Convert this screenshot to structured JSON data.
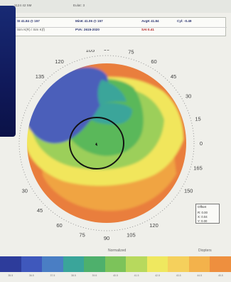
{
  "header": {
    "line1_left": "1124 42 5M",
    "line1_right": "Eulat: 3",
    "sim_k": "SI 41.84 @ 157",
    "sim_k_sub": "Sim K(R) / Sim K(f)",
    "min_k": "MinK 41.06 @ 157",
    "pva": "PVA: 2615-2020",
    "avg_k": "AvgK 41.84",
    "sai": "SAI 0.41",
    "cyl": "Cyl: -0.49"
  },
  "map": {
    "degree_labels": [
      {
        "text": "105",
        "angle": 100
      },
      {
        "text": "90",
        "angle": 90
      },
      {
        "text": "75",
        "angle": 75
      },
      {
        "text": "60",
        "angle": 60
      },
      {
        "text": "45",
        "angle": 45
      },
      {
        "text": "30",
        "angle": 30
      },
      {
        "text": "15",
        "angle": 15
      },
      {
        "text": "0",
        "angle": 0
      },
      {
        "text": "165",
        "angle": -15
      },
      {
        "text": "150",
        "angle": -30
      },
      {
        "text": "120",
        "angle": -60
      },
      {
        "text": "105",
        "angle": -75
      },
      {
        "text": "90",
        "angle": -90
      },
      {
        "text": "75",
        "angle": -105
      },
      {
        "text": "60",
        "angle": -120
      },
      {
        "text": "45",
        "angle": -135
      },
      {
        "text": "30",
        "angle": -150
      },
      {
        "text": "135",
        "angle": 135
      },
      {
        "text": "120",
        "angle": 120
      }
    ],
    "colors": {
      "blue": "#4c5fba",
      "teal": "#3aa59a",
      "green": "#5ab85a",
      "lightgreen": "#9ccf5a",
      "yellow": "#f1e65c",
      "orange": "#f0a443",
      "red": "#e97e3d",
      "pupil": "#111111"
    }
  },
  "stats": {
    "title": "Offset",
    "lines": [
      "R: 0.00",
      "X: 0.04",
      "Y: 0.00"
    ]
  },
  "scale": {
    "left_label": "Normalized",
    "right_label": "Diopters",
    "colors": [
      "#2d3c9b",
      "#3f58bc",
      "#4a7ec4",
      "#3aa59a",
      "#4eb06c",
      "#7cc35a",
      "#b7d95d",
      "#efe85f",
      "#f5d05c",
      "#f3b24b",
      "#ee8f3e"
    ],
    "ticks": [
      "35.5",
      "36.5",
      "37.5",
      "38.5",
      "39.5",
      "40.5",
      "41.5",
      "42.5",
      "43.5",
      "44.5",
      "45.5"
    ]
  }
}
